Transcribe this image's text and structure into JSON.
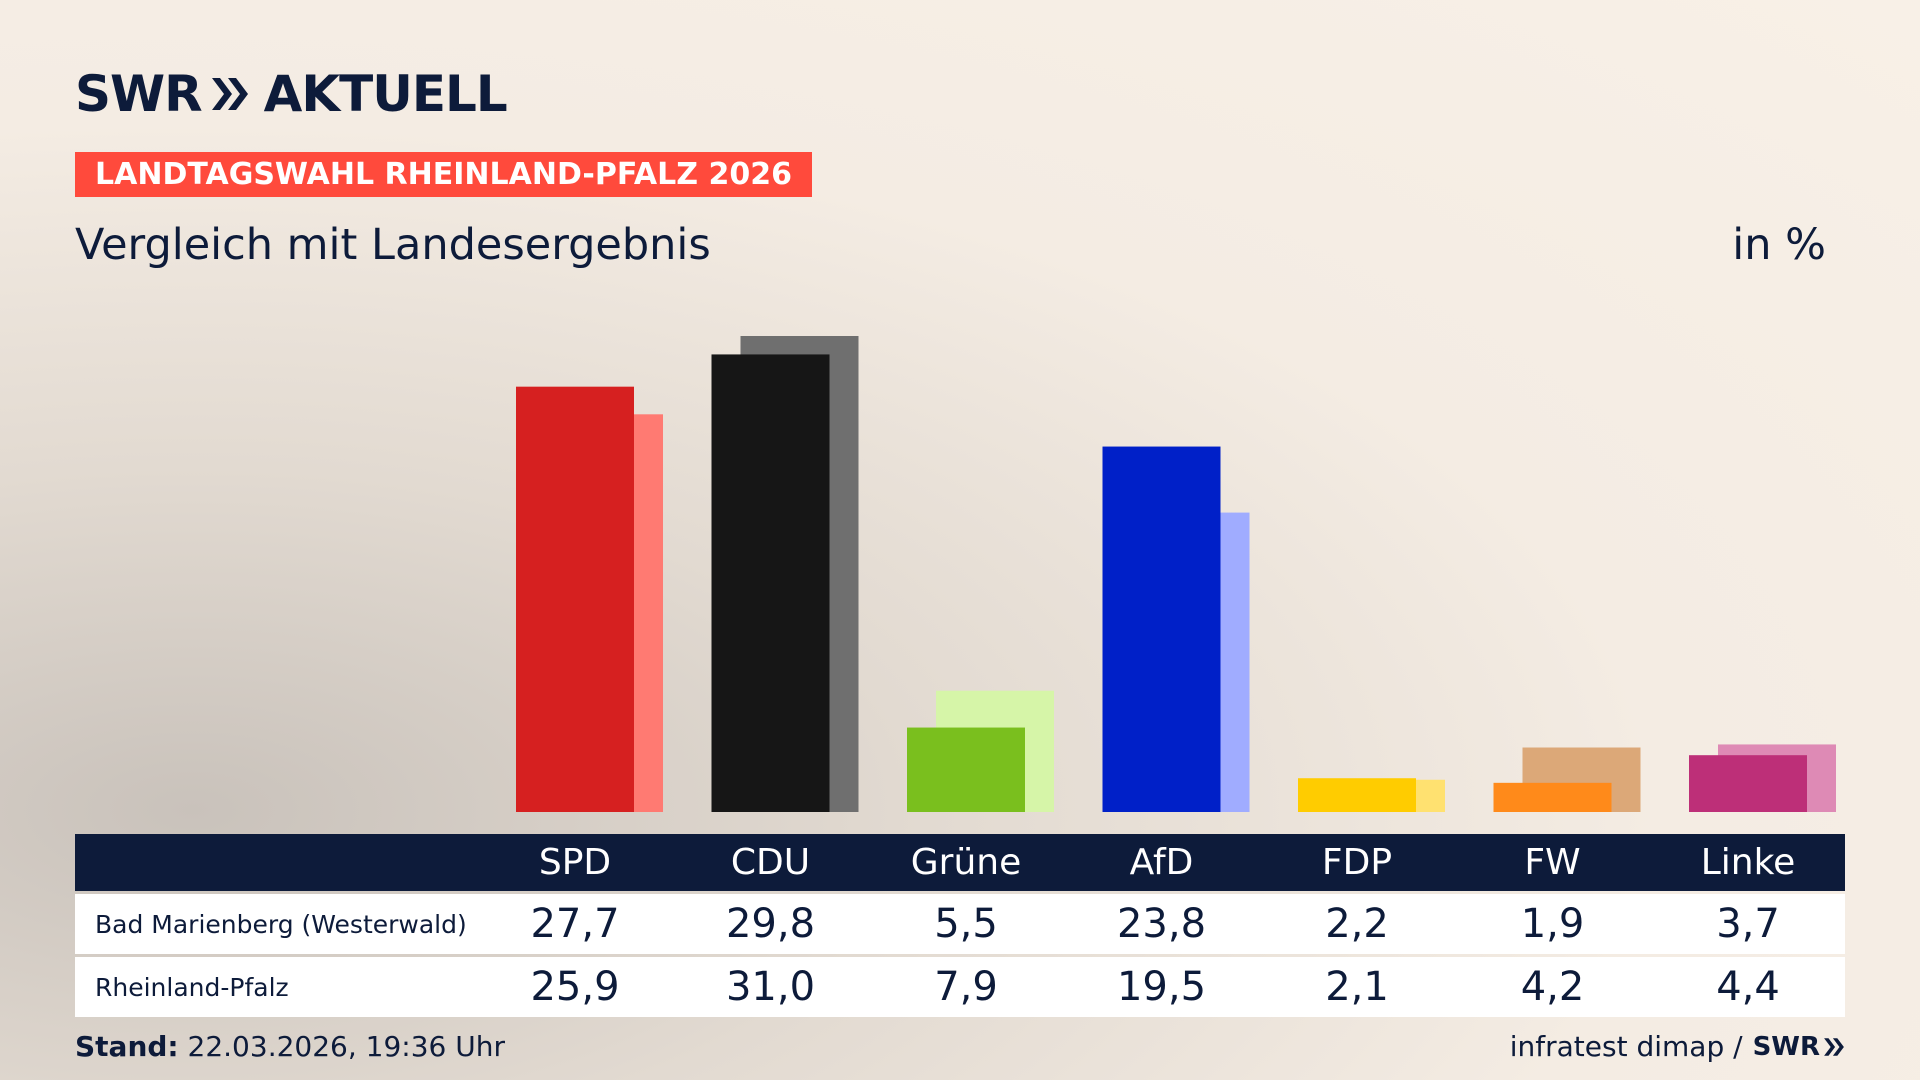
{
  "header": {
    "logo_swr": "SWR",
    "logo_aktuell": "AKTUELL",
    "badge": "LANDTAGSWAHL RHEINLAND-PFALZ 2026",
    "subtitle": "Vergleich mit Landesergebnis",
    "unit": "in %"
  },
  "chart_data": {
    "type": "bar",
    "categories": [
      "SPD",
      "CDU",
      "Grüne",
      "AfD",
      "FDP",
      "FW",
      "Linke"
    ],
    "series": [
      {
        "name": "Bad Marienberg (Westerwald)",
        "values": [
          27.7,
          29.8,
          5.5,
          23.8,
          2.2,
          1.9,
          3.7
        ],
        "labels": [
          "27,7",
          "29,8",
          "5,5",
          "23,8",
          "2,2",
          "1,9",
          "3,7"
        ]
      },
      {
        "name": "Rheinland-Pfalz",
        "values": [
          25.9,
          31.0,
          7.9,
          19.5,
          2.1,
          4.2,
          4.4
        ],
        "labels": [
          "25,9",
          "31,0",
          "7,9",
          "19,5",
          "2,1",
          "4,2",
          "4,4"
        ]
      }
    ],
    "colors_primary": [
      "#d62020",
      "#161616",
      "#7abf1e",
      "#0020c8",
      "#ffcc00",
      "#ff8a1a",
      "#bd2f78"
    ],
    "colors_secondary": [
      "#ff7a72",
      "#6f6f6f",
      "#d6f5a8",
      "#a0acff",
      "#ffe170",
      "#dca878",
      "#de8ab5"
    ],
    "ylim": [
      0,
      31.0
    ]
  },
  "footer": {
    "stand_label": "Stand:",
    "stand_value": "22.03.2026, 19:36 Uhr",
    "source": "infratest dimap /",
    "source_logo": "SWR"
  }
}
